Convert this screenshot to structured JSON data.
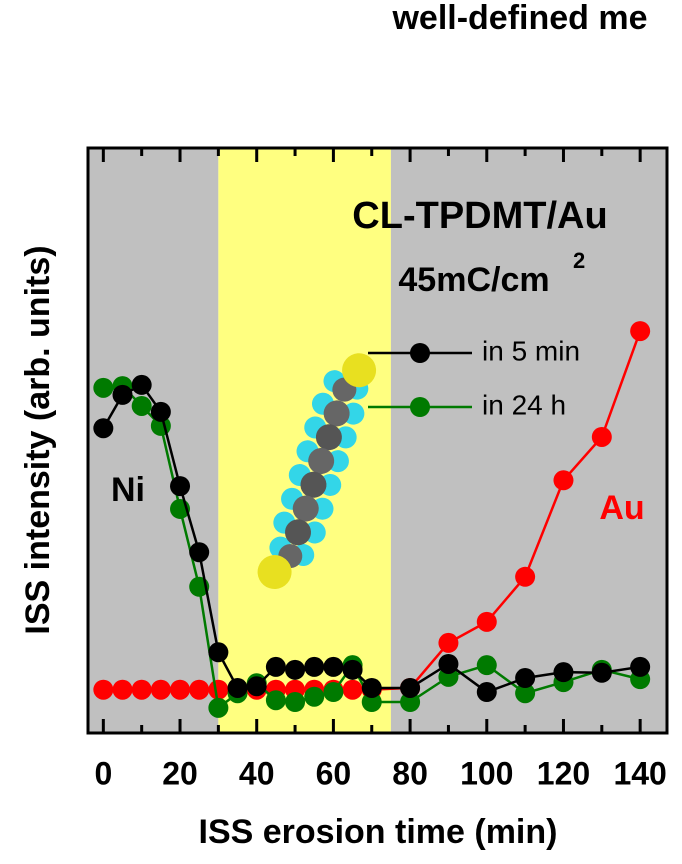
{
  "chart_data": {
    "type": "line",
    "title": "well-defined me",
    "xlabel": "ISS erosion time (min)",
    "ylabel": "ISS intensity (arb. units)",
    "annotations": [
      "CL-TPDMT/Au",
      "45mC/cm",
      "2",
      "Ni",
      "Au"
    ],
    "x": [
      0,
      5,
      10,
      15,
      20,
      25,
      30,
      35,
      40,
      45,
      50,
      55,
      60,
      65,
      70,
      80,
      90,
      100,
      110,
      120,
      130,
      140
    ],
    "series": [
      {
        "name": "in 5 min",
        "color": "#000000",
        "values": [
          52.1,
          57.8,
          59.5,
          54.9,
          42.2,
          30.9,
          13.8,
          7.7,
          8.0,
          11.3,
          10.8,
          11.3,
          11.3,
          10.8,
          7.7,
          7.7,
          11.8,
          7.0,
          9.4,
          10.4,
          10.3,
          11.3
        ]
      },
      {
        "name": "in 24 h",
        "color": "#007a00",
        "values": [
          59.0,
          59.3,
          55.9,
          52.5,
          38.3,
          25.0,
          4.3,
          6.8,
          8.5,
          5.6,
          5.3,
          6.2,
          7.0,
          11.6,
          5.3,
          5.3,
          9.6,
          11.6,
          6.8,
          8.7,
          10.8,
          9.2
        ]
      },
      {
        "name": "Au",
        "color": "#ff0000",
        "values": [
          7.4,
          7.4,
          7.4,
          7.4,
          7.4,
          7.4,
          7.4,
          7.4,
          7.4,
          7.4,
          7.4,
          7.4,
          7.4,
          7.4,
          7.4,
          7.7,
          15.4,
          19.0,
          26.7,
          43.2,
          50.6,
          68.7
        ]
      }
    ],
    "legend_series": [
      0,
      1
    ],
    "shaded_regions": [
      {
        "x": [
          -4,
          30
        ],
        "color": "#c0c0c0"
      },
      {
        "x": [
          30,
          75
        ],
        "color": "#ffff80"
      },
      {
        "x": [
          75,
          147
        ],
        "color": "#c0c0c0"
      }
    ],
    "xlim": [
      -4,
      147
    ],
    "ylim": [
      0,
      100
    ],
    "xticks": [
      0,
      20,
      40,
      60,
      80,
      100,
      120,
      140
    ],
    "xticks_minor": [
      10,
      30,
      50,
      70,
      90,
      110,
      130
    ]
  }
}
